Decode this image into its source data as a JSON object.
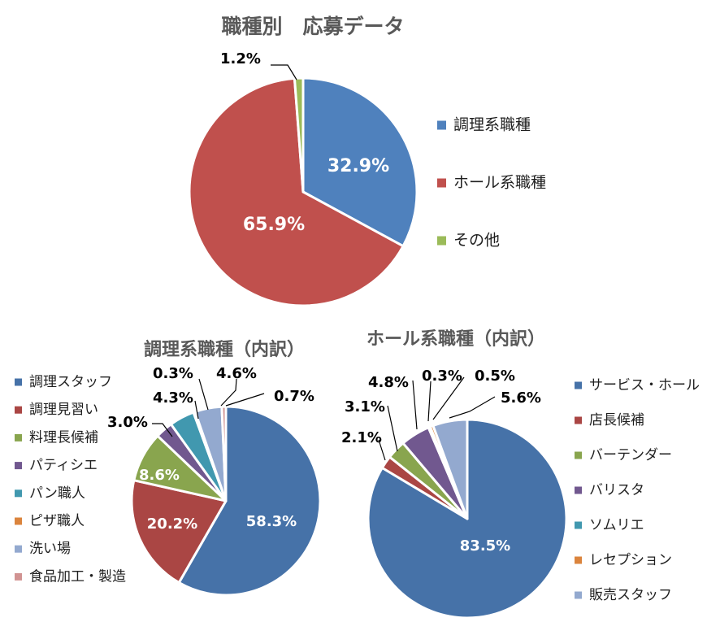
{
  "chart_data": [
    {
      "type": "pie",
      "title": "職種別　応募データ",
      "categories": [
        "調理系職種",
        "ホール系職種",
        "その他"
      ],
      "values": [
        32.9,
        65.9,
        1.2
      ],
      "labels": [
        "32.9%",
        "65.9%",
        "1.2%"
      ],
      "colors": [
        "#4f81bd",
        "#c0504d",
        "#9bbb59"
      ],
      "legend_position": "right"
    },
    {
      "type": "pie",
      "title": "調理系職種（内訳）",
      "categories": [
        "調理スタッフ",
        "調理見習い",
        "料理長候補",
        "パティシエ",
        "パン職人",
        "ピザ職人",
        "洗い場",
        "食品加工・製造"
      ],
      "values": [
        58.3,
        20.2,
        8.6,
        3.0,
        4.3,
        0.3,
        4.6,
        0.7
      ],
      "labels": [
        "58.3%",
        "20.2%",
        "8.6%",
        "3.0%",
        "4.3%",
        "0.3%",
        "4.6%",
        "0.7%"
      ],
      "colors": [
        "#4672a8",
        "#aa4644",
        "#89a54e",
        "#71588f",
        "#4198af",
        "#db843d",
        "#93a9cf",
        "#d19392"
      ],
      "legend_position": "left"
    },
    {
      "type": "pie",
      "title": "ホール系職種（内訳）",
      "categories": [
        "サービス・ホール",
        "店長候補",
        "バーテンダー",
        "バリスタ",
        "ソムリエ",
        "レセプション",
        "販売スタッフ"
      ],
      "values": [
        83.5,
        2.1,
        3.1,
        4.8,
        0.3,
        0.5,
        5.6
      ],
      "labels": [
        "83.5%",
        "2.1%",
        "3.1%",
        "4.8%",
        "0.3%",
        "0.5%",
        "5.6%"
      ],
      "colors": [
        "#4672a8",
        "#aa4644",
        "#89a54e",
        "#71588f",
        "#4198af",
        "#db843d",
        "#93a9cf"
      ],
      "legend_position": "right"
    }
  ]
}
